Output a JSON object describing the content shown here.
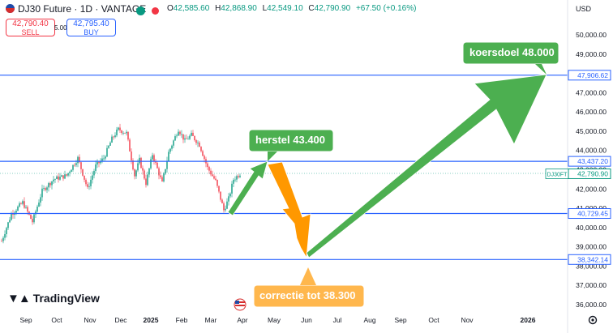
{
  "header": {
    "symbol_title": "DJ30 Future · 1D · VANTAGE",
    "open_label": "O",
    "open": "42,585.60",
    "high_label": "H",
    "high": "42,868.90",
    "low_label": "L",
    "low": "42,549.10",
    "close_label": "C",
    "close": "42,790.90",
    "change": "+67.50 (+0.16%)",
    "status_colors": [
      "#089981",
      "#f23645"
    ]
  },
  "trade": {
    "sell_price": "42,790.40",
    "sell_label": "SELL",
    "spread": "5.00",
    "buy_price": "42,795.40",
    "buy_label": "BUY"
  },
  "currency": "USD",
  "price_axis": {
    "ticks": [
      "50,000.00",
      "49,000.00",
      "48,000.00",
      "47,000.00",
      "46,000.00",
      "45,000.00",
      "44,000.00",
      "43,000.00",
      "42,000.00",
      "41,000.00",
      "40,000.00",
      "39,000.00",
      "38,000.00",
      "37,000.00",
      "36,000.00"
    ],
    "level_labels": [
      "47,906.62",
      "43,437.20",
      "40,729.45",
      "38,342.14"
    ],
    "symbol_tag": "DJ30FT",
    "last_price": "42,790.90"
  },
  "time_axis": {
    "labels": [
      "Sep",
      "Oct",
      "Nov",
      "Dec",
      "2025",
      "Feb",
      "Mar",
      "Apr",
      "May",
      "Jun",
      "Jul",
      "Aug",
      "Sep",
      "Oct",
      "Nov",
      "2026"
    ]
  },
  "annotations": {
    "target": "koersdoel 48.000",
    "recovery": "herstel 43.400",
    "correction": "correctie tot 38.300"
  },
  "branding": {
    "logo_text": "TradingView"
  },
  "chart_data": {
    "type": "candlestick",
    "symbol": "DJ30 Future",
    "y_range": [
      35700,
      50400
    ],
    "horizontal_levels": [
      47906.62,
      43437.2,
      40729.45,
      38342.14
    ],
    "last_close": 42790.9,
    "projection": [
      {
        "label": "herstel 43.400",
        "to": 43400
      },
      {
        "label": "correctie tot 38.300",
        "to": 38300
      },
      {
        "label": "koersdoel 48.000",
        "to": 48000
      }
    ],
    "colors": {
      "up": "#089981",
      "down": "#f23645",
      "levels": "#2962ff",
      "green_arrow": "#4caf50",
      "orange_arrow": "#ff9800"
    }
  }
}
